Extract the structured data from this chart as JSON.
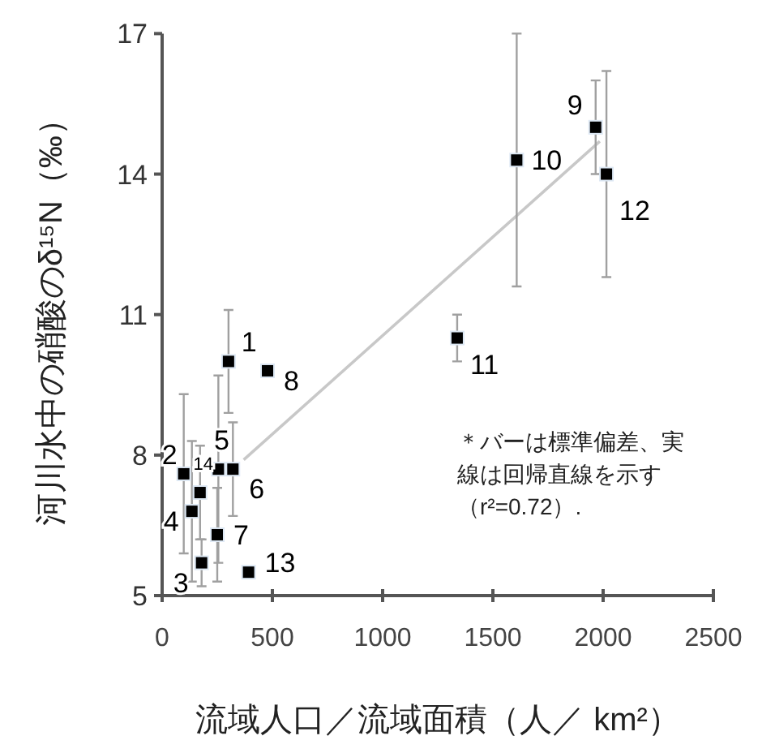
{
  "chart_data": {
    "type": "scatter",
    "xlabel": "流域人口／流域面積（人／ km²）",
    "ylabel": "河川水中の硝酸のδ¹⁵N（‰）",
    "xlim": [
      0,
      2500
    ],
    "ylim": [
      5,
      17
    ],
    "xticks": [
      0,
      500,
      1000,
      1500,
      2000,
      2500
    ],
    "yticks": [
      5,
      8,
      11,
      14,
      17
    ],
    "series": [
      {
        "marker": "square",
        "color": "#000000",
        "x": [
          301,
          98,
          179,
          135,
          255,
          321,
          250,
          478,
          1966,
          1608,
          1338,
          2015,
          392,
          172
        ],
        "values": [
          10.0,
          7.6,
          5.7,
          6.8,
          7.7,
          7.7,
          6.3,
          9.8,
          15.0,
          14.3,
          10.5,
          14.0,
          5.5,
          7.2
        ],
        "errors": [
          1.1,
          1.7,
          0.5,
          1.5,
          2.0,
          1.0,
          1.0,
          null,
          1.0,
          2.7,
          0.5,
          2.2,
          null,
          1.0
        ]
      },
      {
        "type": "line",
        "color": "#c8c8c8",
        "x": [
          370,
          1985
        ],
        "values": [
          7.9,
          14.7
        ]
      }
    ],
    "annotations": [
      {
        "text": "1",
        "x": 301,
        "y": 10.0
      },
      {
        "text": "2",
        "x": 98,
        "y": 7.6
      },
      {
        "text": "3",
        "x": 179,
        "y": 5.7
      },
      {
        "text": "4",
        "x": 135,
        "y": 6.8
      },
      {
        "text": "5",
        "x": 255,
        "y": 7.7
      },
      {
        "text": "6",
        "x": 321,
        "y": 7.7
      },
      {
        "text": "7",
        "x": 250,
        "y": 6.3
      },
      {
        "text": "8",
        "x": 478,
        "y": 9.8
      },
      {
        "text": "9",
        "x": 1966,
        "y": 15.0
      },
      {
        "text": "10",
        "x": 1608,
        "y": 14.3
      },
      {
        "text": "11",
        "x": 1338,
        "y": 10.5
      },
      {
        "text": "12",
        "x": 2015,
        "y": 14.0
      },
      {
        "text": "13",
        "x": 392,
        "y": 5.5
      },
      {
        "text": "14",
        "x": 172,
        "y": 7.2
      },
      "＊バーは標準偏差、実線は回帰直線を示す（r²=0.72）."
    ]
  }
}
